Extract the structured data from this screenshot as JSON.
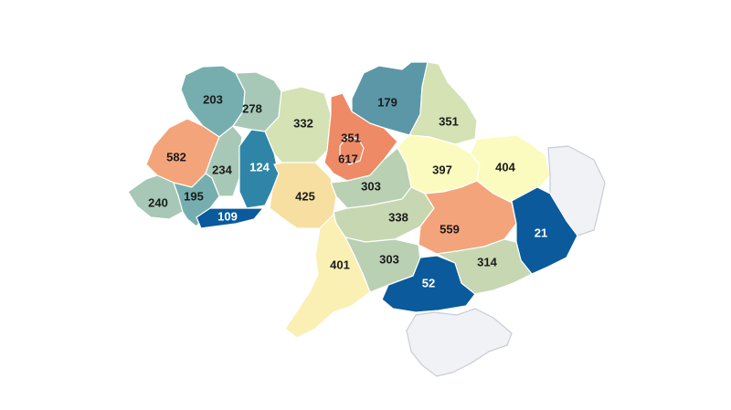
{
  "colors": {
    "nodata": "#f1f2f6",
    "light_yellow": "#fcfbbf",
    "pale_yellow": "#faf0b4",
    "sand": "#f6dfa0",
    "pale_green": "#d4e2b4",
    "sage": "#b9d0b2",
    "grey_teal": "#a7c8b6",
    "teal": "#76aeaf",
    "teal_blue": "#5c97a7",
    "blue_teal": "#2e85a8",
    "deep_blue": "#0a5a9c",
    "salmon": "#f4a47a",
    "coral": "#ee8a66"
  },
  "regions": [
    {
      "id": "volyn",
      "value": "203",
      "color": "#76aeaf"
    },
    {
      "id": "rivne",
      "value": "278",
      "color": "#a7c8b6"
    },
    {
      "id": "zhytomyr",
      "value": "332",
      "color": "#d4e2b4"
    },
    {
      "id": "kyiv-region",
      "value": "351",
      "color": "#ee8a66"
    },
    {
      "id": "kyiv-city",
      "value": "617",
      "color": "#ee8a66"
    },
    {
      "id": "chernihiv",
      "value": "179",
      "color": "#5c97a7"
    },
    {
      "id": "sumy",
      "value": "351",
      "color": "#d4e2b4"
    },
    {
      "id": "lviv",
      "value": "582",
      "color": "#f4a47a"
    },
    {
      "id": "ternopil",
      "value": "234",
      "color": "#a7c8b6"
    },
    {
      "id": "khmelnytskyi",
      "value": "124",
      "color": "#2e85a8"
    },
    {
      "id": "vinnytsia",
      "value": "425",
      "color": "#f6dfa0"
    },
    {
      "id": "cherkasy",
      "value": "303",
      "color": "#b9d0b2"
    },
    {
      "id": "poltava",
      "value": "397",
      "color": "#fcfbbf"
    },
    {
      "id": "kharkiv",
      "value": "404",
      "color": "#fcfbbf"
    },
    {
      "id": "luhansk",
      "value": "",
      "color": "#f1f2f6"
    },
    {
      "id": "zakarpattia",
      "value": "240",
      "color": "#a7c8b6"
    },
    {
      "id": "ivano-frankivsk",
      "value": "195",
      "color": "#76aeaf"
    },
    {
      "id": "chernivtsi",
      "value": "109",
      "color": "#0a5a9c"
    },
    {
      "id": "kirovohrad",
      "value": "338",
      "color": "#c7d7b2"
    },
    {
      "id": "dnipropetrovsk",
      "value": "559",
      "color": "#f4a47a"
    },
    {
      "id": "donetsk",
      "value": "21",
      "color": "#0a5a9c"
    },
    {
      "id": "odesa",
      "value": "401",
      "color": "#faf0b4"
    },
    {
      "id": "mykolaiv",
      "value": "303",
      "color": "#b9d0b2"
    },
    {
      "id": "kherson",
      "value": "52",
      "color": "#0a5a9c"
    },
    {
      "id": "zaporizhzhia",
      "value": "314",
      "color": "#c7d7b2"
    },
    {
      "id": "crimea",
      "value": "",
      "color": "#f1f2f6"
    }
  ]
}
